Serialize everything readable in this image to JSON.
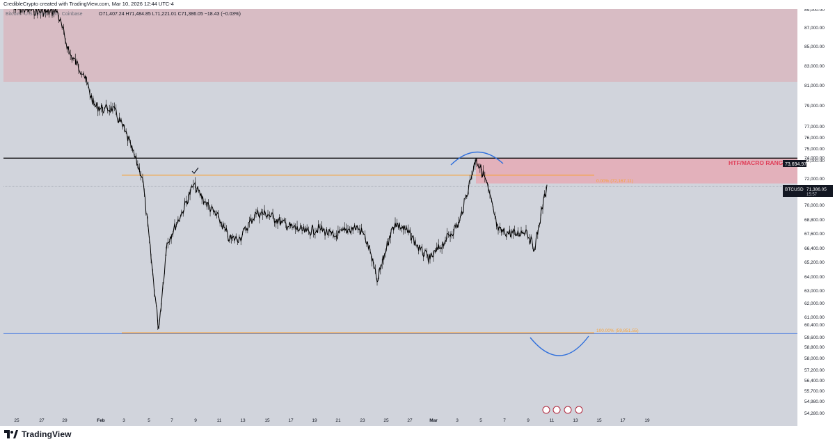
{
  "header": {
    "attribution": "CredibleCrypto created with TradingView.com, Mar 10, 2026 12:44 UTC-4",
    "symbol": "Bitcoin / U.S. Dollar · 1h · Coinbase",
    "ohlc": "O71,407.24 H71,484.85 L71,221.01 C71,386.05 −18.43 (−0.03%)"
  },
  "footer": {
    "brand": "TradingView"
  },
  "colors": {
    "background": "#d1d4dc",
    "supply_zone": "#d8bcc4",
    "macro_zone": "#e3b1bb",
    "candle": "#000000",
    "fib": "#f7a23a",
    "htf_line": "#000000",
    "support_line": "#4f7fe0",
    "arc": "#2f6fdc",
    "annotation_red": "#e0405a"
  },
  "chart_data": {
    "type": "line",
    "title": "",
    "xlabel": "",
    "ylabel": "",
    "price_axis_labels": [
      "89,000.00",
      "87,000.00",
      "85,000.00",
      "83,000.00",
      "81,000.00",
      "79,000.00",
      "77,000.00",
      "76,000.00",
      "75,000.00",
      "74,000.00",
      "73,000.00",
      "72,000.00",
      "70,000.00",
      "68,800.00",
      "67,600.00",
      "66,400.00",
      "65,200.00",
      "64,000.00",
      "63,000.00",
      "62,000.00",
      "61,000.00",
      "60,400.00",
      "59,600.00",
      "58,800.00",
      "58,000.00",
      "57,200.00",
      "56,400.00",
      "55,700.00",
      "54,980.00",
      "54,280.00"
    ],
    "time_axis_labels": [
      "25",
      "27",
      "29",
      "Feb",
      "3",
      "5",
      "7",
      "9",
      "11",
      "13",
      "15",
      "17",
      "19",
      "21",
      "23",
      "25",
      "27",
      "Mar",
      "3",
      "5",
      "7",
      "9",
      "11",
      "13",
      "15",
      "17",
      "19"
    ],
    "price_path": {
      "x": [
        "Jan 24",
        "Jan 26",
        "Jan 28",
        "Jan 29",
        "Jan 30",
        "Jan 31",
        "Feb 1",
        "Feb 2",
        "Feb 3",
        "Feb 4",
        "Feb 5",
        "Feb 6 (low)",
        "Feb 6",
        "Feb 7",
        "Feb 8",
        "Feb 9",
        "Feb 10",
        "Feb 11",
        "Feb 12",
        "Feb 13",
        "Feb 14",
        "Feb 15",
        "Feb 16",
        "Feb 17",
        "Feb 18",
        "Feb 19",
        "Feb 20",
        "Feb 21",
        "Feb 22",
        "Feb 23",
        "Feb 24",
        "Feb 25",
        "Feb 26",
        "Feb 27",
        "Feb 28",
        "Mar 1",
        "Mar 2",
        "Mar 3",
        "Mar 4",
        "Mar 5",
        "Mar 6",
        "Mar 7",
        "Mar 8",
        "Mar 9",
        "Mar 10"
      ],
      "y": [
        89000,
        88900,
        88600,
        88800,
        84200,
        82200,
        79000,
        78600,
        78700,
        76500,
        72000,
        60100,
        66800,
        69400,
        71500,
        70200,
        68800,
        67100,
        67200,
        69300,
        69200,
        68500,
        68100,
        67700,
        68000,
        67300,
        67900,
        68100,
        67600,
        66100,
        63600,
        67400,
        68500,
        67600,
        66200,
        65400,
        67000,
        68500,
        73600,
        71900,
        67800,
        67500,
        67900,
        66300,
        71500
      ]
    },
    "zones": [
      {
        "name": "upper supply zone",
        "from": 81300,
        "to": 89500
      },
      {
        "name": "HTF/MACRO RANGE HIGHS zone",
        "from": 71600,
        "to": 73640
      }
    ],
    "lines": [
      {
        "label": "HTF/MACRO RANGE HIGHS",
        "value": 73694.97,
        "value_label": "73,694.97"
      },
      {
        "label": "0.00% (72,167.11)",
        "value": 72167.11
      },
      {
        "label": "100.00% (59,851.55)",
        "value": 59851.55
      }
    ],
    "current_price": {
      "symbol": "BTCUSD",
      "value": 71386.05,
      "value_label": "71,386.05",
      "countdown": "15:57"
    },
    "annotations": [
      "checkmark at Feb 9 high",
      "blue arc over Mar 4 high",
      "blue arc below Mar 9–13"
    ]
  }
}
